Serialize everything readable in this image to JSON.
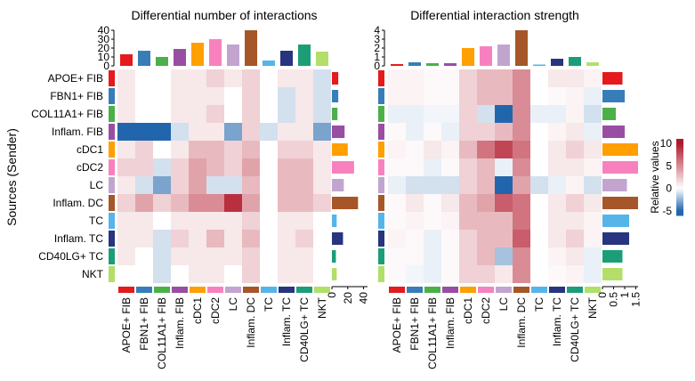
{
  "y_axis_title": "Sources (Sender)",
  "groups": [
    "APOE+ FIB",
    "FBN1+ FIB",
    "COL11A1+ FIB",
    "Inflam. FIB",
    "cDC1",
    "cDC2",
    "LC",
    "Inflam. DC",
    "TC",
    "Inflam. TC",
    "CD40LG+ TC",
    "NKT"
  ],
  "group_colors": [
    "#e41a1c",
    "#377eb8",
    "#4daf4a",
    "#984ea3",
    "#ff9f00",
    "#f781bf",
    "#c2a5cf",
    "#a65628",
    "#56b4e9",
    "#283480",
    "#1b9e77",
    "#b3de69"
  ],
  "colorbar": {
    "title": "Relative values",
    "ticks": [
      10,
      5,
      0,
      -5
    ],
    "range": [
      -6,
      11
    ]
  },
  "chart_data": [
    {
      "type": "heatmap",
      "title": "Differential number of interactions",
      "rows": [
        "APOE+ FIB",
        "FBN1+ FIB",
        "COL11A1+ FIB",
        "Inflam. FIB",
        "cDC1",
        "cDC2",
        "LC",
        "Inflam. DC",
        "TC",
        "Inflam. TC",
        "CD40LG+ TC",
        "NKT"
      ],
      "columns": [
        "APOE+ FIB",
        "FBN1+ FIB",
        "COL11A1+ FIB",
        "Inflam. FIB",
        "cDC1",
        "cDC2",
        "LC",
        "Inflam. DC",
        "TC",
        "Inflam. TC",
        "CD40LG+ TC",
        "NKT"
      ],
      "values": [
        [
          1,
          0,
          0,
          1,
          1,
          2,
          1,
          2,
          0,
          1,
          1,
          -1
        ],
        [
          1,
          0,
          0,
          1,
          1,
          1,
          0,
          2,
          0,
          -1,
          1,
          -1
        ],
        [
          1,
          0,
          0,
          1,
          1,
          2,
          0,
          2,
          0,
          -1,
          1,
          -1
        ],
        [
          -5,
          -5,
          -5,
          -1,
          1,
          1,
          -3,
          2,
          -1,
          1,
          1,
          -3
        ],
        [
          1,
          2,
          0,
          1,
          3,
          3,
          2,
          3,
          0,
          2,
          2,
          1
        ],
        [
          2,
          2,
          -1,
          2,
          4,
          3,
          2,
          4,
          0,
          3,
          3,
          1
        ],
        [
          1,
          -1,
          -3,
          2,
          4,
          -1,
          -1,
          3,
          0,
          3,
          3,
          1
        ],
        [
          2,
          4,
          2,
          3,
          5,
          5,
          9,
          4,
          0,
          3,
          3,
          2
        ],
        [
          1,
          1,
          0,
          1,
          1,
          1,
          1,
          2,
          0,
          1,
          1,
          0
        ],
        [
          1,
          1,
          -1,
          2,
          1,
          3,
          1,
          3,
          0,
          1,
          2,
          0
        ],
        [
          1,
          0,
          -1,
          1,
          1,
          1,
          1,
          2,
          0,
          1,
          1,
          0
        ],
        [
          0,
          0,
          -1,
          0,
          1,
          1,
          0,
          2,
          0,
          1,
          1,
          0
        ]
      ],
      "top_bars": {
        "values": [
          13,
          17,
          10,
          19,
          26,
          30,
          24,
          40,
          6,
          17,
          24,
          16
        ],
        "ylim": [
          0,
          40
        ],
        "ticks": [
          0,
          10,
          20,
          30,
          40
        ]
      },
      "right_bars": {
        "values": [
          8,
          8,
          7,
          16,
          20,
          28,
          15,
          33,
          6,
          14,
          5,
          6
        ],
        "xlim": [
          0,
          45
        ],
        "ticks": [
          0,
          20,
          40
        ]
      }
    },
    {
      "type": "heatmap",
      "title": "Differential interaction strength",
      "rows": [
        "APOE+ FIB",
        "FBN1+ FIB",
        "COL11A1+ FIB",
        "Inflam. FIB",
        "cDC1",
        "cDC2",
        "LC",
        "Inflam. DC",
        "TC",
        "Inflam. TC",
        "CD40LG+ TC",
        "NKT"
      ],
      "columns": [
        "APOE+ FIB",
        "FBN1+ FIB",
        "COL11A1+ FIB",
        "Inflam. FIB",
        "cDC1",
        "cDC2",
        "LC",
        "Inflam. DC",
        "TC",
        "Inflam. TC",
        "CD40LG+ TC",
        "NKT"
      ],
      "values": [
        [
          0.5,
          0.5,
          0.3,
          0.3,
          2,
          3,
          3,
          5,
          0,
          1,
          1,
          0.5
        ],
        [
          0.5,
          0.5,
          0.3,
          0.3,
          2,
          3,
          3,
          5,
          0,
          0.3,
          0.5,
          -0.5
        ],
        [
          -0.5,
          -0.5,
          -0.3,
          -0.3,
          2,
          -1,
          -5,
          5,
          -0.5,
          -0.5,
          0.5,
          -1
        ],
        [
          0.3,
          -0.5,
          0.3,
          -0.5,
          2,
          2,
          3,
          5,
          0,
          0.5,
          1,
          -0.5
        ],
        [
          0.5,
          0.3,
          1,
          0.5,
          3,
          6,
          8,
          6,
          0,
          1,
          2,
          1
        ],
        [
          0.3,
          0.3,
          -0.5,
          0.3,
          2,
          3,
          -0.5,
          5,
          0,
          1,
          1,
          0.5
        ],
        [
          -0.5,
          -1,
          -1,
          -1,
          2,
          3,
          -5,
          4,
          -1,
          -0.5,
          0.5,
          -1
        ],
        [
          0.3,
          1,
          0.3,
          1,
          3,
          4,
          7,
          6,
          0,
          1,
          2,
          1
        ],
        [
          0.3,
          0.5,
          0.3,
          0.5,
          3,
          3,
          3,
          6,
          0,
          1,
          1,
          0.5
        ],
        [
          0.5,
          0.3,
          -0.5,
          0.3,
          2,
          3,
          3,
          7,
          0,
          1,
          2,
          0.5
        ],
        [
          0.3,
          0.3,
          -0.5,
          0.3,
          2,
          3,
          -2,
          5,
          0,
          0.5,
          1,
          -0.5
        ],
        [
          0.3,
          -0.3,
          -0.5,
          0.3,
          2,
          2,
          1,
          5,
          0,
          0.3,
          0.5,
          -0.5
        ]
      ],
      "top_bars": {
        "values": [
          0.2,
          0.4,
          0.3,
          0.3,
          2.0,
          2.2,
          2.4,
          4.0,
          0.15,
          0.8,
          1.0,
          0.4
        ],
        "ylim": [
          0,
          4
        ],
        "ticks": [
          0,
          1,
          2,
          3,
          4
        ]
      },
      "right_bars": {
        "values": [
          0.9,
          1.0,
          0.6,
          1.0,
          1.6,
          1.6,
          1.1,
          1.6,
          1.2,
          1.2,
          0.9,
          0.9
        ],
        "xlim": [
          0,
          1.6
        ],
        "ticks": [
          0,
          0.5,
          1,
          1.5
        ]
      }
    }
  ]
}
